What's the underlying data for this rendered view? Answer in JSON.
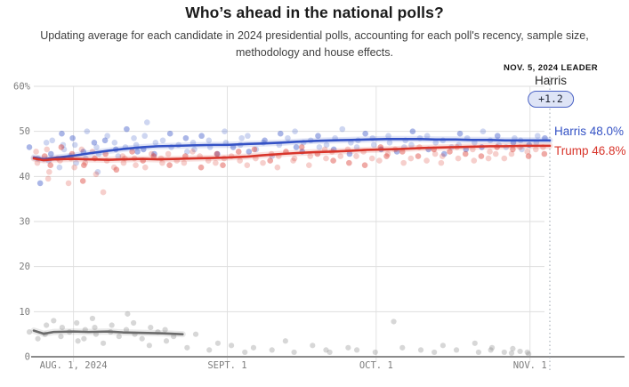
{
  "header": {
    "title": "Who’s ahead in the national polls?",
    "subtitle": "Updating average for each candidate in 2024 presidential polls, accounting for each poll's recency, sample size, methodology and house effects."
  },
  "leader": {
    "caption": "NOV. 5, 2024 LEADER",
    "name": "Harris",
    "margin": "+1.2"
  },
  "colors": {
    "harris": "#3452c5",
    "trump": "#d8352b",
    "other": "#6b6b6b",
    "grid": "#dedede",
    "axis": "#8a8a8a",
    "tick_text": "#7d7d7d",
    "leader_line": "#9aa3ad",
    "badge_bg": "#dee4f6",
    "badge_border": "#4a62c4"
  },
  "chart_data": {
    "type": "line+scatter",
    "title": "Who’s ahead in the national polls?",
    "ylim": [
      0,
      60
    ],
    "yticks": [
      0,
      10,
      20,
      30,
      40,
      50,
      60
    ],
    "ytick_labels": [
      "0",
      "10",
      "20",
      "30",
      "40",
      "50",
      "60%"
    ],
    "xticks": [
      {
        "pos": 8,
        "label": "AUG. 1, 2024"
      },
      {
        "pos": 39,
        "label": "SEPT. 1"
      },
      {
        "pos": 69,
        "label": "OCT. 1"
      },
      {
        "pos": 100,
        "label": "NOV. 1"
      }
    ],
    "x_range_days": [
      0,
      104
    ],
    "leader_line_day": 104,
    "grid": true,
    "legend_position": "right-end-labels",
    "series": [
      {
        "name": "Harris",
        "final_value": 48.0,
        "final_label": "Harris 48.0%",
        "avg": [
          [
            0,
            44.2
          ],
          [
            2,
            43.8
          ],
          [
            4,
            44.1
          ],
          [
            8,
            44.6
          ],
          [
            11,
            45.1
          ],
          [
            15,
            45.7
          ],
          [
            18,
            46.1
          ],
          [
            22,
            46.5
          ],
          [
            25,
            46.7
          ],
          [
            29,
            46.8
          ],
          [
            32,
            46.9
          ],
          [
            36,
            47.0
          ],
          [
            39,
            47.0
          ],
          [
            43,
            47.2
          ],
          [
            46,
            47.3
          ],
          [
            50,
            47.5
          ],
          [
            53,
            47.7
          ],
          [
            57,
            47.9
          ],
          [
            60,
            48.0
          ],
          [
            64,
            48.1
          ],
          [
            67,
            48.2
          ],
          [
            71,
            48.3
          ],
          [
            74,
            48.3
          ],
          [
            78,
            48.3
          ],
          [
            81,
            48.2
          ],
          [
            85,
            48.2
          ],
          [
            88,
            48.1
          ],
          [
            92,
            48.1
          ],
          [
            95,
            48.0
          ],
          [
            99,
            48.0
          ],
          [
            104,
            48.0
          ]
        ]
      },
      {
        "name": "Trump",
        "final_value": 46.8,
        "final_label": "Trump 46.8%",
        "avg": [
          [
            0,
            44.0
          ],
          [
            2,
            43.6
          ],
          [
            4,
            43.8
          ],
          [
            8,
            43.9
          ],
          [
            11,
            43.8
          ],
          [
            15,
            43.7
          ],
          [
            18,
            43.8
          ],
          [
            22,
            43.9
          ],
          [
            25,
            43.8
          ],
          [
            29,
            43.9
          ],
          [
            32,
            44.0
          ],
          [
            36,
            44.1
          ],
          [
            39,
            44.2
          ],
          [
            43,
            44.4
          ],
          [
            46,
            44.7
          ],
          [
            50,
            45.0
          ],
          [
            53,
            45.2
          ],
          [
            57,
            45.4
          ],
          [
            60,
            45.5
          ],
          [
            64,
            45.7
          ],
          [
            67,
            45.9
          ],
          [
            71,
            46.0
          ],
          [
            74,
            46.1
          ],
          [
            78,
            46.3
          ],
          [
            81,
            46.4
          ],
          [
            85,
            46.5
          ],
          [
            88,
            46.6
          ],
          [
            92,
            46.7
          ],
          [
            95,
            46.7
          ],
          [
            99,
            46.8
          ],
          [
            104,
            46.8
          ]
        ]
      },
      {
        "name": "Other",
        "avg": [
          [
            0,
            5.8
          ],
          [
            2,
            5.1
          ],
          [
            4,
            5.5
          ],
          [
            8,
            5.6
          ],
          [
            11,
            5.5
          ],
          [
            15,
            5.6
          ],
          [
            18,
            5.4
          ],
          [
            22,
            5.3
          ],
          [
            26,
            5.2
          ],
          [
            30,
            5.0
          ]
        ]
      }
    ],
    "polls": {
      "harris_trump": [
        [
          0,
          46.5,
          43.0
        ],
        [
          1,
          44.0,
          45.5
        ],
        [
          2,
          47.5,
          44.5
        ],
        [
          2,
          38.5,
          39.5
        ],
        [
          3,
          43.5,
          46.0
        ],
        [
          3,
          48.0,
          42.5
        ],
        [
          4,
          45.0,
          41.0
        ],
        [
          5,
          42.0,
          44.0
        ],
        [
          5,
          47.0,
          46.5
        ],
        [
          6,
          49.5,
          43.5
        ],
        [
          7,
          44.5,
          38.5
        ],
        [
          7,
          46.0,
          45.0
        ],
        [
          8,
          48.5,
          44.0
        ],
        [
          8,
          43.0,
          42.0
        ],
        [
          9,
          47.0,
          39.0
        ],
        [
          10,
          45.5,
          46.0
        ],
        [
          10,
          50.0,
          43.0
        ],
        [
          11,
          44.0,
          42.5
        ],
        [
          12,
          47.5,
          45.5
        ],
        [
          12,
          41.0,
          40.5
        ],
        [
          13,
          46.5,
          44.0
        ],
        [
          14,
          48.0,
          36.5
        ],
        [
          14,
          45.0,
          43.5
        ],
        [
          15,
          49.0,
          45.0
        ],
        [
          16,
          46.0,
          42.0
        ],
        [
          17,
          47.5,
          44.5
        ],
        [
          17,
          44.5,
          41.5
        ],
        [
          18,
          50.5,
          44.0
        ],
        [
          19,
          46.5,
          43.0
        ],
        [
          20,
          48.5,
          45.5
        ],
        [
          20,
          45.5,
          42.5
        ],
        [
          21,
          47.0,
          44.0
        ],
        [
          22,
          49.0,
          43.5
        ],
        [
          23,
          46.0,
          45.0
        ],
        [
          23,
          52.0,
          42.0
        ],
        [
          24,
          47.5,
          44.5
        ],
        [
          25,
          45.0,
          43.0
        ],
        [
          26,
          48.0,
          44.0
        ],
        [
          27,
          46.5,
          42.5
        ],
        [
          28,
          49.5,
          45.0
        ],
        [
          29,
          47.0,
          43.5
        ],
        [
          30,
          45.5,
          44.5
        ],
        [
          31,
          48.5,
          43.0
        ],
        [
          32,
          46.0,
          45.5
        ],
        [
          33,
          47.5,
          42.0
        ],
        [
          34,
          49.0,
          44.5
        ],
        [
          35,
          46.5,
          43.5
        ],
        [
          36,
          48.0,
          45.0
        ],
        [
          37,
          45.0,
          43.0
        ],
        [
          38,
          47.5,
          44.0
        ],
        [
          39,
          50.0,
          42.5
        ],
        [
          40,
          46.5,
          44.5
        ],
        [
          41,
          48.5,
          43.5
        ],
        [
          42,
          47.0,
          45.5
        ],
        [
          43,
          45.5,
          42.5
        ],
        [
          44,
          49.0,
          44.0
        ],
        [
          45,
          46.0,
          46.0
        ],
        [
          46,
          48.0,
          43.0
        ],
        [
          47,
          47.5,
          45.0
        ],
        [
          48,
          44.5,
          43.5
        ],
        [
          49,
          49.5,
          44.5
        ],
        [
          50,
          47.0,
          42.0
        ],
        [
          51,
          48.5,
          45.5
        ],
        [
          52,
          46.5,
          44.0
        ],
        [
          53,
          50.0,
          43.5
        ],
        [
          54,
          47.5,
          46.5
        ],
        [
          55,
          45.5,
          44.5
        ],
        [
          56,
          48.0,
          42.5
        ],
        [
          57,
          46.5,
          45.0
        ],
        [
          58,
          49.0,
          44.0
        ],
        [
          59,
          47.0,
          46.0
        ],
        [
          60,
          48.5,
          43.5
        ],
        [
          61,
          46.0,
          45.5
        ],
        [
          62,
          50.5,
          44.5
        ],
        [
          63,
          47.5,
          43.0
        ],
        [
          64,
          45.0,
          46.0
        ],
        [
          65,
          48.0,
          44.5
        ],
        [
          66,
          46.5,
          42.5
        ],
        [
          67,
          49.5,
          45.5
        ],
        [
          68,
          47.0,
          44.0
        ],
        [
          69,
          48.5,
          46.5
        ],
        [
          70,
          46.0,
          43.5
        ],
        [
          71,
          47.5,
          45.0
        ],
        [
          72,
          49.0,
          44.5
        ],
        [
          73,
          45.5,
          46.0
        ],
        [
          74,
          48.0,
          43.0
        ],
        [
          75,
          46.5,
          45.5
        ],
        [
          76,
          50.0,
          44.0
        ],
        [
          77,
          47.0,
          46.5
        ],
        [
          78,
          48.5,
          44.5
        ],
        [
          79,
          46.0,
          43.5
        ],
        [
          80,
          49.0,
          45.0
        ],
        [
          81,
          47.5,
          46.0
        ],
        [
          82,
          45.0,
          44.5
        ],
        [
          83,
          48.0,
          43.0
        ],
        [
          84,
          46.5,
          45.5
        ],
        [
          85,
          49.5,
          44.0
        ],
        [
          86,
          47.0,
          46.5
        ],
        [
          87,
          48.5,
          45.0
        ],
        [
          88,
          46.0,
          43.5
        ],
        [
          89,
          47.5,
          46.0
        ],
        [
          90,
          50.0,
          44.5
        ],
        [
          91,
          46.5,
          45.5
        ],
        [
          92,
          48.0,
          44.0
        ],
        [
          93,
          47.0,
          46.5
        ],
        [
          94,
          49.0,
          45.0
        ],
        [
          95,
          46.5,
          44.0
        ],
        [
          96,
          48.5,
          46.0
        ],
        [
          97,
          47.5,
          45.0
        ],
        [
          98,
          46.0,
          46.5
        ],
        [
          99,
          48.0,
          44.5
        ],
        [
          100,
          47.0,
          45.5
        ],
        [
          101,
          49.0,
          46.0
        ],
        [
          102,
          47.5,
          45.0
        ],
        [
          103,
          48.5,
          46.5
        ]
      ],
      "other": [
        [
          0,
          5.5
        ],
        [
          1,
          4.0
        ],
        [
          2,
          7.0
        ],
        [
          3,
          5.0
        ],
        [
          4,
          8.0
        ],
        [
          5,
          6.5
        ],
        [
          6,
          4.5
        ],
        [
          7,
          5.5
        ],
        [
          8,
          3.5
        ],
        [
          9,
          7.5
        ],
        [
          10,
          6.0
        ],
        [
          11,
          4.0
        ],
        [
          12,
          8.5
        ],
        [
          12,
          5.0
        ],
        [
          13,
          6.5
        ],
        [
          14,
          3.0
        ],
        [
          15,
          7.0
        ],
        [
          16,
          5.5
        ],
        [
          17,
          4.5
        ],
        [
          18,
          9.5
        ],
        [
          19,
          6.0
        ],
        [
          20,
          5.0
        ],
        [
          21,
          7.5
        ],
        [
          22,
          4.0
        ],
        [
          23,
          6.5
        ],
        [
          24,
          2.5
        ],
        [
          25,
          5.5
        ],
        [
          26,
          3.5
        ],
        [
          27,
          6.0
        ],
        [
          28,
          4.5
        ],
        [
          30,
          2.0
        ],
        [
          33,
          5.0
        ],
        [
          35,
          1.5
        ],
        [
          38,
          3.0
        ],
        [
          40,
          2.5
        ],
        [
          42,
          1.0
        ],
        [
          45,
          2.0
        ],
        [
          48,
          1.5
        ],
        [
          50,
          3.5
        ],
        [
          53,
          1.0
        ],
        [
          56,
          2.5
        ],
        [
          58,
          1.5
        ],
        [
          60,
          1.0
        ],
        [
          63,
          2.0
        ],
        [
          66,
          1.5
        ],
        [
          69,
          1.0
        ],
        [
          72,
          7.8
        ],
        [
          75,
          2.0
        ],
        [
          78,
          1.5
        ],
        [
          80,
          1.0
        ],
        [
          83,
          2.5
        ],
        [
          85,
          1.5
        ],
        [
          88,
          3.0
        ],
        [
          90,
          1.0
        ],
        [
          92,
          2.0
        ],
        [
          93,
          1.5
        ],
        [
          95,
          1.0
        ],
        [
          96,
          1.8
        ],
        [
          97,
          0.8
        ],
        [
          98,
          1.2
        ],
        [
          99,
          0.6
        ],
        [
          100,
          1.0
        ]
      ]
    }
  }
}
